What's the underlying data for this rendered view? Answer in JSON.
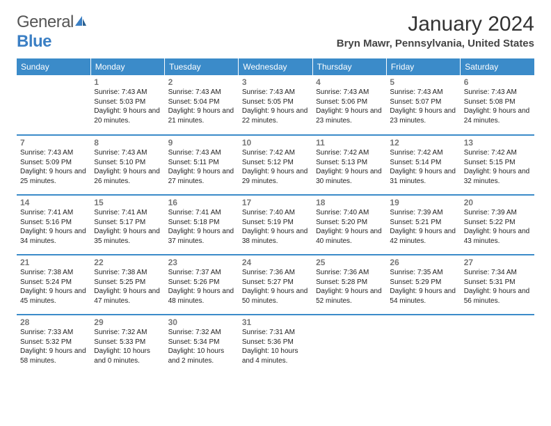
{
  "brand": {
    "part1": "General",
    "part2": "Blue"
  },
  "title": "January 2024",
  "location": "Bryn Mawr, Pennsylvania, United States",
  "colors": {
    "headerBg": "#3b8bc9",
    "ruleColor": "#3b8bc9",
    "brandBlue": "#3b7fc4"
  },
  "weekdays": [
    "Sunday",
    "Monday",
    "Tuesday",
    "Wednesday",
    "Thursday",
    "Friday",
    "Saturday"
  ],
  "weeks": [
    [
      null,
      {
        "n": "1",
        "sr": "7:43 AM",
        "ss": "5:03 PM",
        "dl": "9 hours and 20 minutes."
      },
      {
        "n": "2",
        "sr": "7:43 AM",
        "ss": "5:04 PM",
        "dl": "9 hours and 21 minutes."
      },
      {
        "n": "3",
        "sr": "7:43 AM",
        "ss": "5:05 PM",
        "dl": "9 hours and 22 minutes."
      },
      {
        "n": "4",
        "sr": "7:43 AM",
        "ss": "5:06 PM",
        "dl": "9 hours and 23 minutes."
      },
      {
        "n": "5",
        "sr": "7:43 AM",
        "ss": "5:07 PM",
        "dl": "9 hours and 23 minutes."
      },
      {
        "n": "6",
        "sr": "7:43 AM",
        "ss": "5:08 PM",
        "dl": "9 hours and 24 minutes."
      }
    ],
    [
      {
        "n": "7",
        "sr": "7:43 AM",
        "ss": "5:09 PM",
        "dl": "9 hours and 25 minutes."
      },
      {
        "n": "8",
        "sr": "7:43 AM",
        "ss": "5:10 PM",
        "dl": "9 hours and 26 minutes."
      },
      {
        "n": "9",
        "sr": "7:43 AM",
        "ss": "5:11 PM",
        "dl": "9 hours and 27 minutes."
      },
      {
        "n": "10",
        "sr": "7:42 AM",
        "ss": "5:12 PM",
        "dl": "9 hours and 29 minutes."
      },
      {
        "n": "11",
        "sr": "7:42 AM",
        "ss": "5:13 PM",
        "dl": "9 hours and 30 minutes."
      },
      {
        "n": "12",
        "sr": "7:42 AM",
        "ss": "5:14 PM",
        "dl": "9 hours and 31 minutes."
      },
      {
        "n": "13",
        "sr": "7:42 AM",
        "ss": "5:15 PM",
        "dl": "9 hours and 32 minutes."
      }
    ],
    [
      {
        "n": "14",
        "sr": "7:41 AM",
        "ss": "5:16 PM",
        "dl": "9 hours and 34 minutes."
      },
      {
        "n": "15",
        "sr": "7:41 AM",
        "ss": "5:17 PM",
        "dl": "9 hours and 35 minutes."
      },
      {
        "n": "16",
        "sr": "7:41 AM",
        "ss": "5:18 PM",
        "dl": "9 hours and 37 minutes."
      },
      {
        "n": "17",
        "sr": "7:40 AM",
        "ss": "5:19 PM",
        "dl": "9 hours and 38 minutes."
      },
      {
        "n": "18",
        "sr": "7:40 AM",
        "ss": "5:20 PM",
        "dl": "9 hours and 40 minutes."
      },
      {
        "n": "19",
        "sr": "7:39 AM",
        "ss": "5:21 PM",
        "dl": "9 hours and 42 minutes."
      },
      {
        "n": "20",
        "sr": "7:39 AM",
        "ss": "5:22 PM",
        "dl": "9 hours and 43 minutes."
      }
    ],
    [
      {
        "n": "21",
        "sr": "7:38 AM",
        "ss": "5:24 PM",
        "dl": "9 hours and 45 minutes."
      },
      {
        "n": "22",
        "sr": "7:38 AM",
        "ss": "5:25 PM",
        "dl": "9 hours and 47 minutes."
      },
      {
        "n": "23",
        "sr": "7:37 AM",
        "ss": "5:26 PM",
        "dl": "9 hours and 48 minutes."
      },
      {
        "n": "24",
        "sr": "7:36 AM",
        "ss": "5:27 PM",
        "dl": "9 hours and 50 minutes."
      },
      {
        "n": "25",
        "sr": "7:36 AM",
        "ss": "5:28 PM",
        "dl": "9 hours and 52 minutes."
      },
      {
        "n": "26",
        "sr": "7:35 AM",
        "ss": "5:29 PM",
        "dl": "9 hours and 54 minutes."
      },
      {
        "n": "27",
        "sr": "7:34 AM",
        "ss": "5:31 PM",
        "dl": "9 hours and 56 minutes."
      }
    ],
    [
      {
        "n": "28",
        "sr": "7:33 AM",
        "ss": "5:32 PM",
        "dl": "9 hours and 58 minutes."
      },
      {
        "n": "29",
        "sr": "7:32 AM",
        "ss": "5:33 PM",
        "dl": "10 hours and 0 minutes."
      },
      {
        "n": "30",
        "sr": "7:32 AM",
        "ss": "5:34 PM",
        "dl": "10 hours and 2 minutes."
      },
      {
        "n": "31",
        "sr": "7:31 AM",
        "ss": "5:36 PM",
        "dl": "10 hours and 4 minutes."
      },
      null,
      null,
      null
    ]
  ],
  "labels": {
    "sunrise": "Sunrise: ",
    "sunset": "Sunset: ",
    "daylight": "Daylight: "
  }
}
